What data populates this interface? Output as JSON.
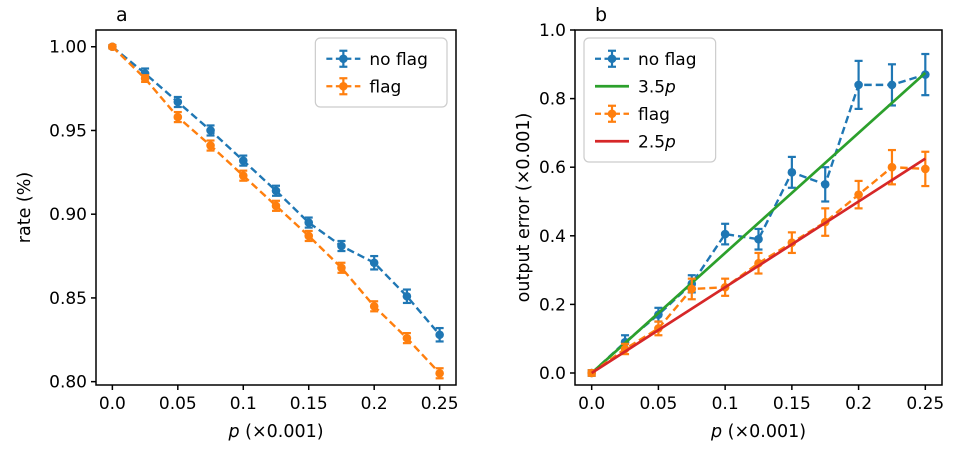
{
  "figure": {
    "background": "#ffffff",
    "panel_labels": [
      "a",
      "b"
    ]
  },
  "colors": {
    "blue": "#1f77b4",
    "orange": "#ff7f0e",
    "green": "#2ca02c",
    "red": "#d62728",
    "legend_border": "#cccccc",
    "axis": "#000000"
  },
  "chart_data": [
    {
      "type": "line",
      "panel_label": "a",
      "title": "",
      "xlabel_segments": [
        {
          "text": "p",
          "italic": true
        },
        {
          "text": " (×0.001)",
          "italic": false
        }
      ],
      "ylabel_segments": [
        {
          "text": "rate (%)",
          "italic": false
        }
      ],
      "xlim": [
        -0.0125,
        0.2625
      ],
      "ylim": [
        0.798,
        1.01
      ],
      "grid": false,
      "legend_loc": "upper right",
      "xticks": {
        "values": [
          0.0,
          0.05,
          0.1,
          0.15,
          0.2,
          0.25
        ],
        "labels": [
          "0.0",
          "0.05",
          "0.1",
          "0.15",
          "0.2",
          "0.25"
        ]
      },
      "yticks": {
        "values": [
          0.8,
          0.85,
          0.9,
          0.95,
          1.0
        ],
        "labels": [
          "0.80",
          "0.85",
          "0.90",
          "0.95",
          "1.00"
        ]
      },
      "series": [
        {
          "id": "no-flag",
          "name_segments": [
            {
              "text": "no flag",
              "italic": false
            }
          ],
          "style": "errorbar-dashed",
          "color": "#1f77b4",
          "x": [
            0.0,
            0.025,
            0.05,
            0.075,
            0.1,
            0.125,
            0.15,
            0.175,
            0.2,
            0.225,
            0.25
          ],
          "y": [
            1.0,
            0.984,
            0.967,
            0.95,
            0.932,
            0.914,
            0.895,
            0.881,
            0.871,
            0.851,
            0.828
          ],
          "yerr": [
            0.001,
            0.003,
            0.003,
            0.003,
            0.003,
            0.003,
            0.003,
            0.003,
            0.004,
            0.004,
            0.004
          ]
        },
        {
          "id": "flag",
          "name_segments": [
            {
              "text": "flag",
              "italic": false
            }
          ],
          "style": "errorbar-dashed",
          "color": "#ff7f0e",
          "x": [
            0.0,
            0.025,
            0.05,
            0.075,
            0.1,
            0.125,
            0.15,
            0.175,
            0.2,
            0.225,
            0.25
          ],
          "y": [
            1.0,
            0.981,
            0.958,
            0.941,
            0.923,
            0.905,
            0.887,
            0.868,
            0.845,
            0.826,
            0.805
          ],
          "yerr": [
            0.001,
            0.002,
            0.003,
            0.003,
            0.003,
            0.003,
            0.003,
            0.003,
            0.003,
            0.003,
            0.003
          ]
        }
      ]
    },
    {
      "type": "line",
      "panel_label": "b",
      "title": "",
      "xlabel_segments": [
        {
          "text": "p",
          "italic": true
        },
        {
          "text": " (×0.001)",
          "italic": false
        }
      ],
      "ylabel_segments": [
        {
          "text": "output error (×0.001)",
          "italic": false
        }
      ],
      "xlim": [
        -0.0125,
        0.2625
      ],
      "ylim": [
        -0.035,
        1.0
      ],
      "grid": false,
      "legend_loc": "upper left",
      "xticks": {
        "values": [
          0.0,
          0.05,
          0.1,
          0.15,
          0.2,
          0.25
        ],
        "labels": [
          "0.0",
          "0.05",
          "0.1",
          "0.15",
          "0.2",
          "0.25"
        ]
      },
      "yticks": {
        "values": [
          0.0,
          0.2,
          0.4,
          0.6,
          0.8,
          1.0
        ],
        "labels": [
          "0.0",
          "0.2",
          "0.4",
          "0.6",
          "0.8",
          "1.0"
        ]
      },
      "series": [
        {
          "id": "no-flag",
          "name_segments": [
            {
              "text": "no flag",
              "italic": false
            }
          ],
          "style": "errorbar-dashed",
          "color": "#1f77b4",
          "x": [
            0.0,
            0.025,
            0.05,
            0.075,
            0.1,
            0.125,
            0.15,
            0.175,
            0.2,
            0.225,
            0.25
          ],
          "y": [
            0.0,
            0.09,
            0.17,
            0.26,
            0.405,
            0.39,
            0.585,
            0.55,
            0.84,
            0.84,
            0.87
          ],
          "yerr": [
            0.008,
            0.02,
            0.02,
            0.025,
            0.03,
            0.03,
            0.045,
            0.05,
            0.07,
            0.06,
            0.06
          ]
        },
        {
          "id": "fit-3p5",
          "name_segments": [
            {
              "text": "3.5",
              "italic": false
            },
            {
              "text": "p",
              "italic": true
            }
          ],
          "style": "solid-line",
          "color": "#2ca02c",
          "x": [
            0.0,
            0.25
          ],
          "y": [
            0.0,
            0.875
          ]
        },
        {
          "id": "flag",
          "name_segments": [
            {
              "text": "flag",
              "italic": false
            }
          ],
          "style": "errorbar-dashed",
          "color": "#ff7f0e",
          "x": [
            0.0,
            0.025,
            0.05,
            0.075,
            0.1,
            0.125,
            0.15,
            0.175,
            0.2,
            0.225,
            0.25
          ],
          "y": [
            0.0,
            0.07,
            0.13,
            0.245,
            0.25,
            0.32,
            0.38,
            0.44,
            0.52,
            0.6,
            0.595
          ],
          "yerr": [
            0.008,
            0.015,
            0.02,
            0.03,
            0.025,
            0.03,
            0.03,
            0.04,
            0.04,
            0.05,
            0.05
          ]
        },
        {
          "id": "fit-2p5",
          "name_segments": [
            {
              "text": "2.5",
              "italic": false
            },
            {
              "text": "p",
              "italic": true
            }
          ],
          "style": "solid-line",
          "color": "#d62728",
          "x": [
            0.0,
            0.25
          ],
          "y": [
            0.0,
            0.625
          ]
        }
      ]
    }
  ]
}
